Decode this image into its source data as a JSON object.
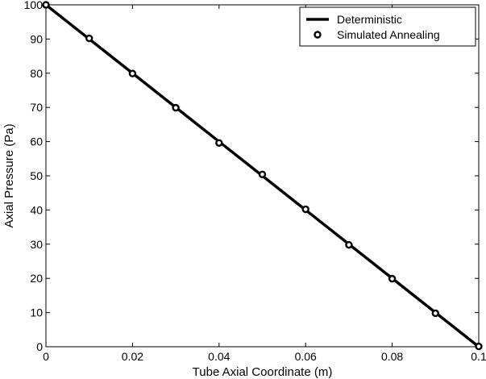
{
  "chart_data": {
    "type": "line",
    "title": "",
    "xlabel": "Tube Axial Coordinate (m)",
    "ylabel": "Axial Pressure (Pa)",
    "xlim": [
      0,
      0.1
    ],
    "ylim": [
      0,
      100
    ],
    "xticks": [
      0,
      0.02,
      0.04,
      0.06,
      0.08,
      0.1
    ],
    "xtick_labels": [
      "0",
      "0.02",
      "0.04",
      "0.06",
      "0.08",
      "0.1"
    ],
    "yticks": [
      0,
      10,
      20,
      30,
      40,
      50,
      60,
      70,
      80,
      90,
      100
    ],
    "ytick_labels": [
      "0",
      "10",
      "20",
      "30",
      "40",
      "50",
      "60",
      "70",
      "80",
      "90",
      "100"
    ],
    "grid": false,
    "legend_position": "top-right",
    "series": [
      {
        "name": "Deterministic",
        "style": "line",
        "color": "#000000",
        "x": [
          0,
          0.1
        ],
        "y": [
          100,
          0
        ]
      },
      {
        "name": "Simulated Annealing",
        "style": "markers",
        "marker": "circle",
        "color": "#000000",
        "x": [
          0,
          0.01,
          0.02,
          0.03,
          0.04,
          0.05,
          0.06,
          0.07,
          0.08,
          0.09,
          0.1
        ],
        "y": [
          100,
          90.2,
          79.9,
          69.9,
          59.6,
          50.4,
          40.2,
          29.8,
          19.9,
          9.8,
          0.1
        ]
      }
    ]
  }
}
